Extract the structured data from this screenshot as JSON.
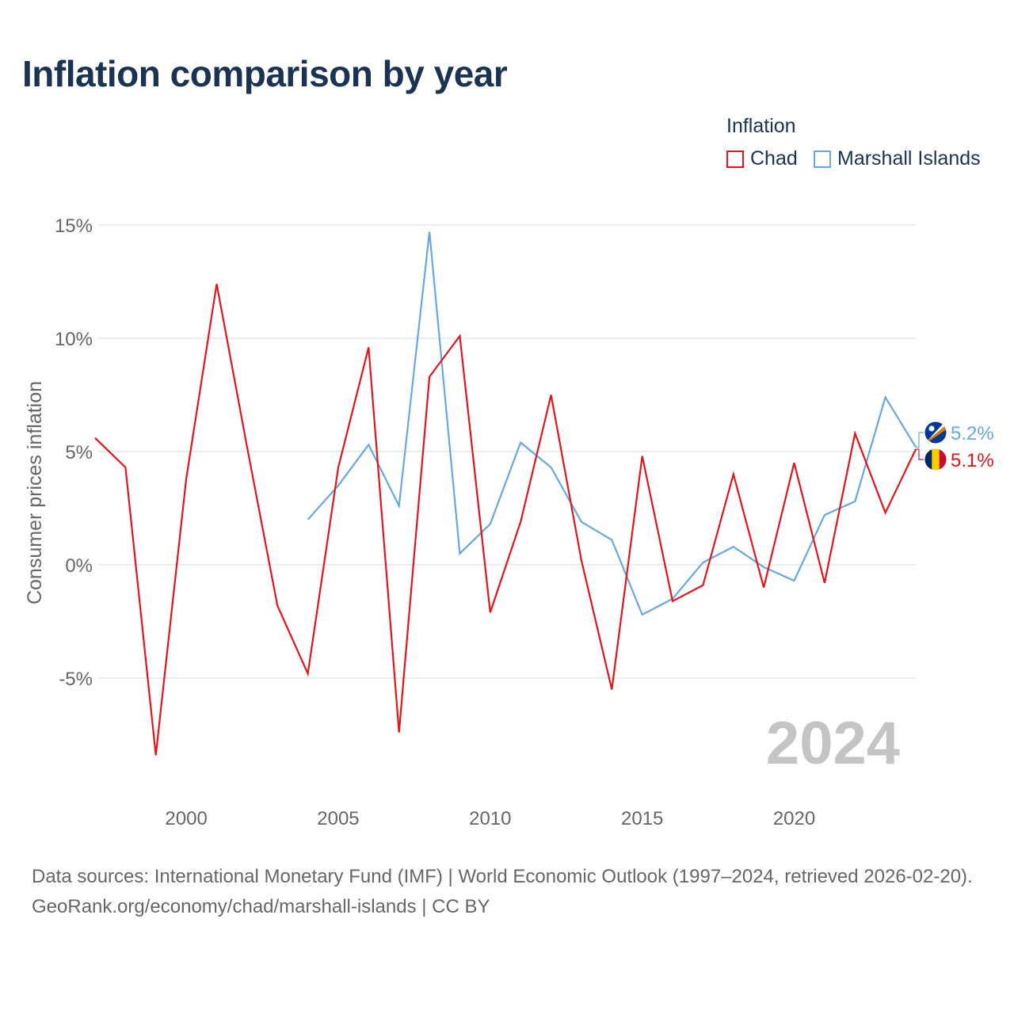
{
  "title": "Inflation comparison by year",
  "legend": {
    "title": "Inflation",
    "items": [
      {
        "label": "Chad",
        "color": "#e4141b"
      },
      {
        "label": "Marshall Islands",
        "color": "#64a8e4"
      }
    ]
  },
  "chart_data": {
    "type": "line",
    "ylabel": "Consumer prices inflation",
    "xlabel": "",
    "ylim": [
      -9.5,
      15
    ],
    "xlim": [
      1997,
      2024
    ],
    "yticks": [
      15,
      10,
      5,
      0,
      -5
    ],
    "ytick_labels": [
      "15%",
      "10%",
      "5%",
      "0%",
      "-5%"
    ],
    "xticks": [
      2000,
      2005,
      2010,
      2015,
      2020
    ],
    "xtick_labels": [
      "2000",
      "2005",
      "2010",
      "2015",
      "2020"
    ],
    "grid": true,
    "year_watermark": "2024",
    "series": [
      {
        "name": "Chad",
        "color": "#e4141b",
        "end_label": "5.1%",
        "x": [
          1997,
          1998,
          1999,
          2000,
          2001,
          2002,
          2003,
          2004,
          2005,
          2006,
          2007,
          2008,
          2009,
          2010,
          2011,
          2012,
          2013,
          2014,
          2015,
          2016,
          2017,
          2018,
          2019,
          2020,
          2021,
          2022,
          2023,
          2024
        ],
        "values": [
          5.6,
          4.3,
          -8.4,
          3.8,
          12.4,
          5.2,
          -1.8,
          -4.8,
          4.3,
          9.6,
          -7.4,
          8.3,
          10.1,
          -2.1,
          1.9,
          7.5,
          0.2,
          -5.5,
          4.8,
          -1.6,
          -0.9,
          4.0,
          -1.0,
          4.5,
          -0.8,
          5.8,
          2.3,
          5.1
        ]
      },
      {
        "name": "Marshall Islands",
        "color": "#64a8e4",
        "end_label": "5.2%",
        "x": [
          2004,
          2005,
          2006,
          2007,
          2008,
          2009,
          2010,
          2011,
          2012,
          2013,
          2014,
          2015,
          2016,
          2017,
          2018,
          2019,
          2020,
          2021,
          2022,
          2023,
          2024
        ],
        "values": [
          2.0,
          3.5,
          5.3,
          2.6,
          14.7,
          0.5,
          1.8,
          5.4,
          4.3,
          1.9,
          1.1,
          -2.2,
          -1.5,
          0.1,
          0.8,
          -0.1,
          -0.7,
          2.2,
          2.8,
          7.4,
          5.2
        ]
      }
    ]
  },
  "footer": {
    "sources": "Data sources: International Monetary Fund (IMF) | World Economic Outlook (1997–2024, retrieved 2026-02-20).",
    "credit": "GeoRank.org/economy/chad/marshall-islands | CC BY"
  }
}
